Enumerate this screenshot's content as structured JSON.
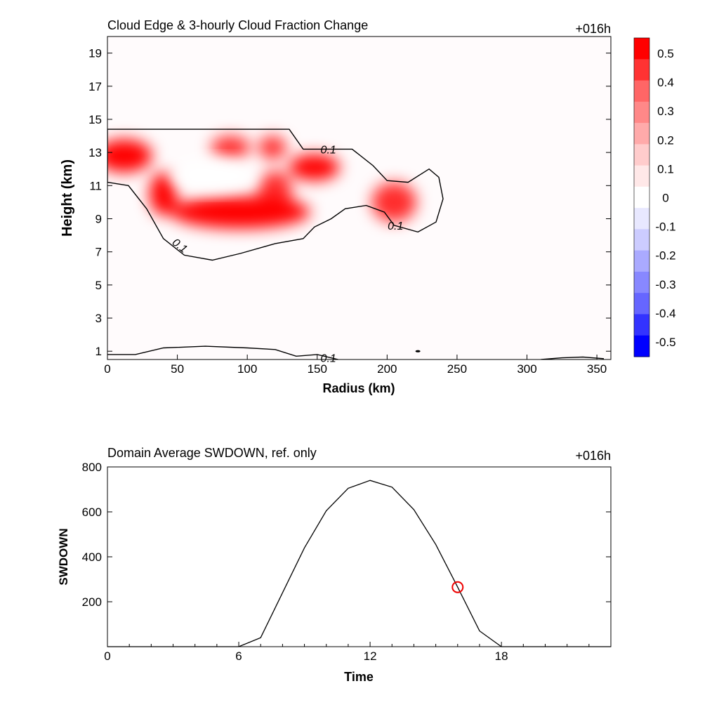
{
  "chart_data": [
    {
      "type": "heatmap",
      "title": "Cloud Edge & 3-hourly Cloud Fraction Change",
      "time_label": "+016h",
      "xlabel": "Radius (km)",
      "ylabel": "Height (km)",
      "xlim": [
        0,
        360
      ],
      "ylim": [
        0.5,
        20
      ],
      "xticks": [
        "0",
        "50",
        "100",
        "150",
        "200",
        "250",
        "300",
        "350"
      ],
      "yticks": [
        "1",
        "3",
        "5",
        "7",
        "9",
        "11",
        "13",
        "15",
        "17",
        "19"
      ],
      "colorbar": {
        "labels": [
          "0.5",
          "0.4",
          "0.3",
          "0.2",
          "0.1",
          "0",
          "-0.1",
          "-0.2",
          "-0.3",
          "-0.4",
          "-0.5"
        ],
        "colors": [
          "#ff0000",
          "#ff3333",
          "#ff6666",
          "#ff8888",
          "#ffaaaa",
          "#ffcccc",
          "#ffe8e8",
          "#ffffff",
          "#e8e8ff",
          "#ccccff",
          "#aaaaff",
          "#8888ff",
          "#6666ff",
          "#3333ff",
          "#0000ff"
        ]
      },
      "contour_labels": [
        "0.1",
        "0.1",
        "0.1",
        "0.1"
      ],
      "features": [
        {
          "shape": "ellipse",
          "cx": 12,
          "cy": 12.8,
          "rx": 20,
          "ry": 1.0,
          "value": 0.55
        },
        {
          "shape": "ellipse",
          "cx": 40,
          "cy": 10.5,
          "rx": 10,
          "ry": 1.3,
          "value": 0.55
        },
        {
          "shape": "ellipse",
          "cx": 95,
          "cy": 9.4,
          "rx": 50,
          "ry": 1.0,
          "value": 0.55
        },
        {
          "shape": "ellipse",
          "cx": 120,
          "cy": 10.6,
          "rx": 12,
          "ry": 1.3,
          "value": 0.45
        },
        {
          "shape": "ellipse",
          "cx": 88,
          "cy": 13.3,
          "rx": 14,
          "ry": 0.7,
          "value": 0.45
        },
        {
          "shape": "ellipse",
          "cx": 118,
          "cy": 13.3,
          "rx": 10,
          "ry": 0.7,
          "value": 0.45
        },
        {
          "shape": "ellipse",
          "cx": 148,
          "cy": 12.1,
          "rx": 18,
          "ry": 0.8,
          "value": 0.55
        },
        {
          "shape": "ellipse",
          "cx": 205,
          "cy": 10.0,
          "rx": 16,
          "ry": 1.2,
          "value": 0.45
        }
      ],
      "contour_01": [
        [
          0,
          14.4
        ],
        [
          130,
          14.4
        ],
        [
          140,
          13.2
        ],
        [
          175,
          13.2
        ],
        [
          190,
          12.2
        ],
        [
          200,
          11.3
        ],
        [
          215,
          11.2
        ],
        [
          230,
          12.0
        ],
        [
          237,
          11.5
        ],
        [
          240,
          10.2
        ],
        [
          235,
          8.8
        ],
        [
          222,
          8.2
        ],
        [
          205,
          8.6
        ],
        [
          198,
          9.4
        ],
        [
          185,
          9.8
        ],
        [
          170,
          9.6
        ],
        [
          160,
          9.0
        ],
        [
          148,
          8.5
        ],
        [
          140,
          7.8
        ],
        [
          120,
          7.5
        ],
        [
          95,
          6.9
        ],
        [
          75,
          6.5
        ],
        [
          55,
          6.8
        ],
        [
          40,
          7.8
        ],
        [
          28,
          9.6
        ],
        [
          15,
          11.0
        ],
        [
          0,
          11.2
        ]
      ],
      "contour_01_low": [
        [
          0,
          0.8
        ],
        [
          20,
          0.8
        ],
        [
          40,
          1.2
        ],
        [
          70,
          1.3
        ],
        [
          100,
          1.2
        ],
        [
          120,
          1.1
        ],
        [
          135,
          0.7
        ],
        [
          150,
          0.8
        ],
        [
          165,
          0.5
        ]
      ]
    },
    {
      "type": "line",
      "title": "Domain Average SWDOWN, ref. only",
      "time_label": "+016h",
      "xlabel": "Time",
      "ylabel": "SWDOWN",
      "xlim": [
        0,
        23
      ],
      "ylim": [
        0,
        800
      ],
      "xticks": [
        "0",
        "6",
        "12",
        "18"
      ],
      "yticks": [
        "200",
        "400",
        "600",
        "800"
      ],
      "x": [
        0,
        1,
        2,
        3,
        4,
        5,
        6,
        7,
        8,
        9,
        10,
        11,
        12,
        13,
        14,
        15,
        16,
        17,
        18,
        19,
        20,
        21,
        22,
        23
      ],
      "y": [
        0,
        0,
        0,
        0,
        0,
        0,
        0,
        40,
        240,
        440,
        605,
        705,
        740,
        710,
        610,
        455,
        265,
        70,
        0,
        0,
        0,
        0,
        0,
        0
      ],
      "marker": {
        "x": 16,
        "y": 265,
        "color": "#ee0000"
      }
    }
  ]
}
